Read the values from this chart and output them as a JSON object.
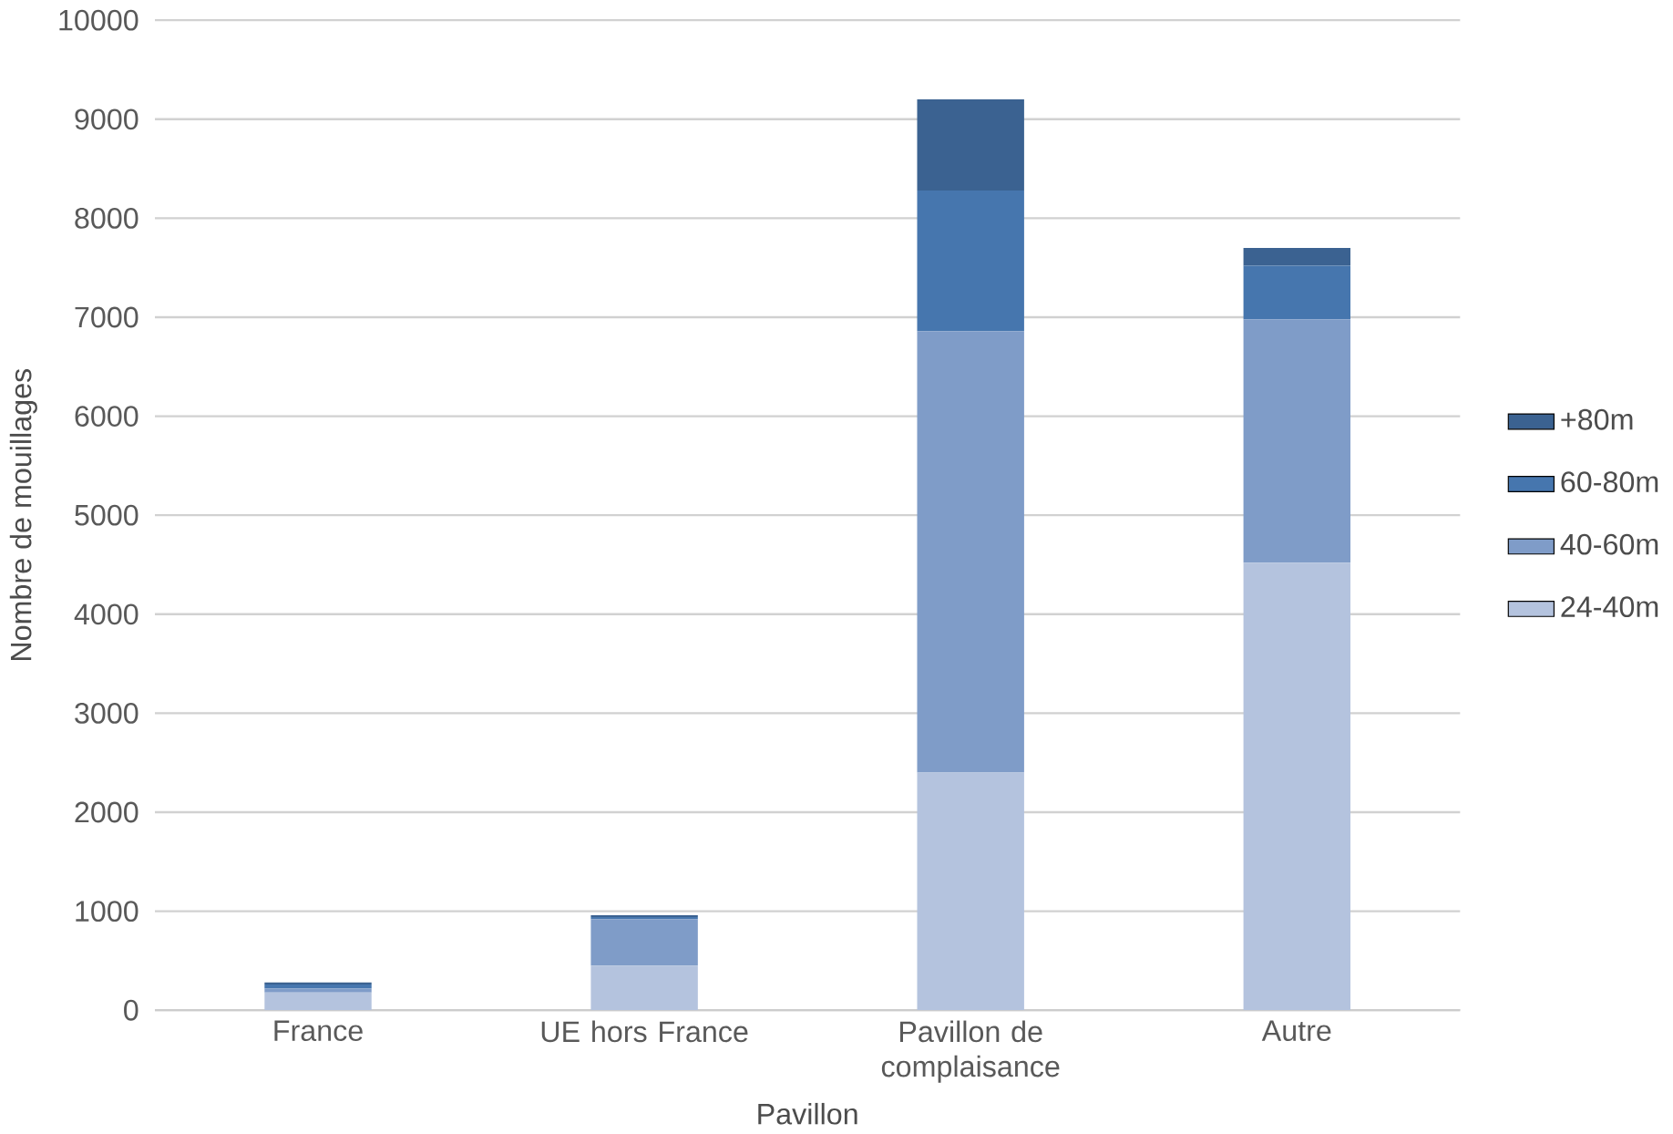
{
  "chart_data": {
    "type": "bar",
    "stacked": true,
    "xlabel": "Pavillon",
    "ylabel": "Nombre de mouillages",
    "categories": [
      "France",
      "UE hors France",
      "Pavillon de complaisance",
      "Autre"
    ],
    "series": [
      {
        "name": "24-40m",
        "color": "#b4c3de",
        "values": [
          180,
          450,
          2400,
          4520
        ]
      },
      {
        "name": "40-60m",
        "color": "#7f9cc8",
        "values": [
          40,
          470,
          4460,
          2460
        ]
      },
      {
        "name": "60-80m",
        "color": "#4676ae",
        "values": [
          40,
          20,
          1420,
          540
        ]
      },
      {
        "name": "+80m",
        "color": "#3b6291",
        "values": [
          20,
          20,
          920,
          180
        ]
      }
    ],
    "ylim": [
      0,
      10000
    ],
    "yticks": [
      0,
      1000,
      2000,
      3000,
      4000,
      5000,
      6000,
      7000,
      8000,
      9000,
      10000
    ],
    "grid": "y",
    "legend": "right"
  }
}
